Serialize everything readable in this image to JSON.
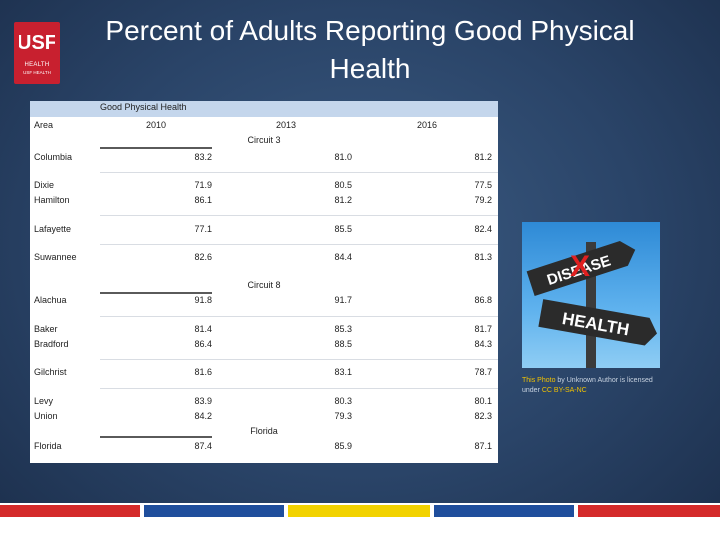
{
  "slide": {
    "title": "Percent of Adults Reporting Good Physical Health",
    "logo_text": "USF",
    "logo_sub1": "HEALTH",
    "logo_sub2": "USF HEALTH"
  },
  "table": {
    "header_label": "Good Physical Health",
    "columns": [
      "Area",
      "2010",
      "2013",
      "2016"
    ],
    "sections": [
      {
        "name": "Circuit 3",
        "rows": [
          {
            "area": "Columbia",
            "v2010": "83.2",
            "v2013": "81.0",
            "v2016": "81.2"
          },
          {
            "area": "Dixie",
            "v2010": "71.9",
            "v2013": "80.5",
            "v2016": "77.5"
          },
          {
            "area": "Hamilton",
            "v2010": "86.1",
            "v2013": "81.2",
            "v2016": "79.2"
          },
          {
            "area": "Lafayette",
            "v2010": "77.1",
            "v2013": "85.5",
            "v2016": "82.4"
          },
          {
            "area": "Suwannee",
            "v2010": "82.6",
            "v2013": "84.4",
            "v2016": "81.3"
          }
        ]
      },
      {
        "name": "Circuit 8",
        "rows": [
          {
            "area": "Alachua",
            "v2010": "91.8",
            "v2013": "91.7",
            "v2016": "86.8"
          },
          {
            "area": "Baker",
            "v2010": "81.4",
            "v2013": "85.3",
            "v2016": "81.7"
          },
          {
            "area": "Bradford",
            "v2010": "86.4",
            "v2013": "88.5",
            "v2016": "84.3"
          },
          {
            "area": "Gilchrist",
            "v2010": "81.6",
            "v2013": "83.1",
            "v2016": "78.7"
          },
          {
            "area": "Levy",
            "v2010": "83.9",
            "v2013": "80.3",
            "v2016": "80.1"
          },
          {
            "area": "Union",
            "v2010": "84.2",
            "v2013": "79.3",
            "v2016": "82.3"
          }
        ]
      },
      {
        "name": "Florida",
        "rows": [
          {
            "area": "Florida",
            "v2010": "87.4",
            "v2013": "85.9",
            "v2016": "87.1"
          }
        ]
      }
    ]
  },
  "image": {
    "sign_top": "DISEASE",
    "sign_bottom": "HEALTH",
    "x_mark": "X",
    "credit_link1": "This Photo",
    "credit_mid": " by Unknown Author is licensed under ",
    "credit_link2": "CC BY-SA-NC"
  },
  "colors": {
    "background": "#2a4468",
    "header_band": "#c4d6ec",
    "brand_red": "#c8202f",
    "bar_red": "#d42a2a",
    "bar_blue": "#1f4e9c",
    "bar_yellow": "#f2d200"
  }
}
